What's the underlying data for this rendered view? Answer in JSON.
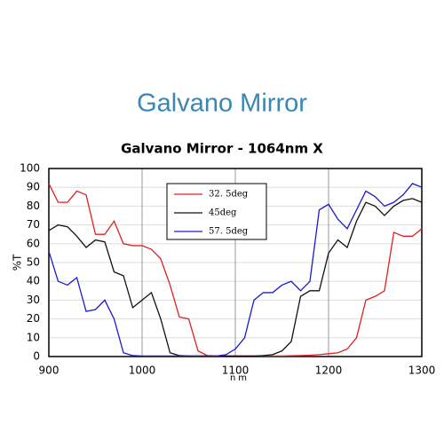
{
  "header": {
    "title": "Galvano Mirror"
  },
  "chart_data": {
    "type": "line",
    "title": "Galvano Mirror - 1064nm X",
    "x_label": "nm",
    "y_label": "%T",
    "x": [
      900,
      910,
      920,
      930,
      940,
      950,
      960,
      970,
      980,
      990,
      1000,
      1010,
      1020,
      1030,
      1040,
      1050,
      1060,
      1070,
      1080,
      1090,
      1100,
      1110,
      1120,
      1130,
      1140,
      1150,
      1160,
      1170,
      1180,
      1190,
      1200,
      1210,
      1220,
      1230,
      1240,
      1250,
      1260,
      1270,
      1280,
      1290,
      1300
    ],
    "series": [
      {
        "name": "32. 5deg",
        "color": "#e02020",
        "values": [
          92,
          82,
          82,
          88,
          86,
          65,
          65,
          72,
          60,
          59,
          59,
          57,
          52,
          38,
          21,
          20,
          3,
          0.5,
          0.3,
          0.3,
          0.3,
          0.3,
          0.3,
          0.3,
          0.3,
          0.3,
          0.4,
          0.5,
          0.7,
          1,
          1.5,
          2,
          4,
          10,
          30,
          32,
          35,
          66,
          64,
          64,
          68
        ]
      },
      {
        "name": "45deg",
        "color": "#111111",
        "values": [
          67,
          70,
          69,
          64,
          58,
          62,
          61,
          45,
          43,
          26,
          30,
          34,
          20,
          2,
          0.5,
          0.3,
          0.3,
          0.3,
          0.3,
          0.3,
          0.3,
          0.3,
          0.3,
          0.5,
          1,
          3,
          8,
          32,
          35,
          35,
          55,
          62,
          58,
          72,
          82,
          80,
          75,
          80,
          83,
          84,
          82
        ]
      },
      {
        "name": "57. 5deg",
        "color": "#1a1ad0",
        "values": [
          56,
          40,
          38,
          42,
          24,
          25,
          30,
          20,
          2,
          0.5,
          0.3,
          0.3,
          0.3,
          0.3,
          0.3,
          0.3,
          0.3,
          0.3,
          0.3,
          1,
          4,
          10,
          30,
          34,
          34,
          38,
          40,
          35,
          40,
          78,
          81,
          73,
          68,
          78,
          88,
          85,
          80,
          82,
          86,
          92,
          90
        ]
      }
    ],
    "xlim": [
      900,
      1300
    ],
    "ylim": [
      0,
      100
    ],
    "xticks": [
      900,
      1000,
      1100,
      1200,
      1300
    ],
    "yticks": [
      0,
      10,
      20,
      30,
      40,
      50,
      60,
      70,
      80,
      90,
      100
    ],
    "grid": true
  }
}
